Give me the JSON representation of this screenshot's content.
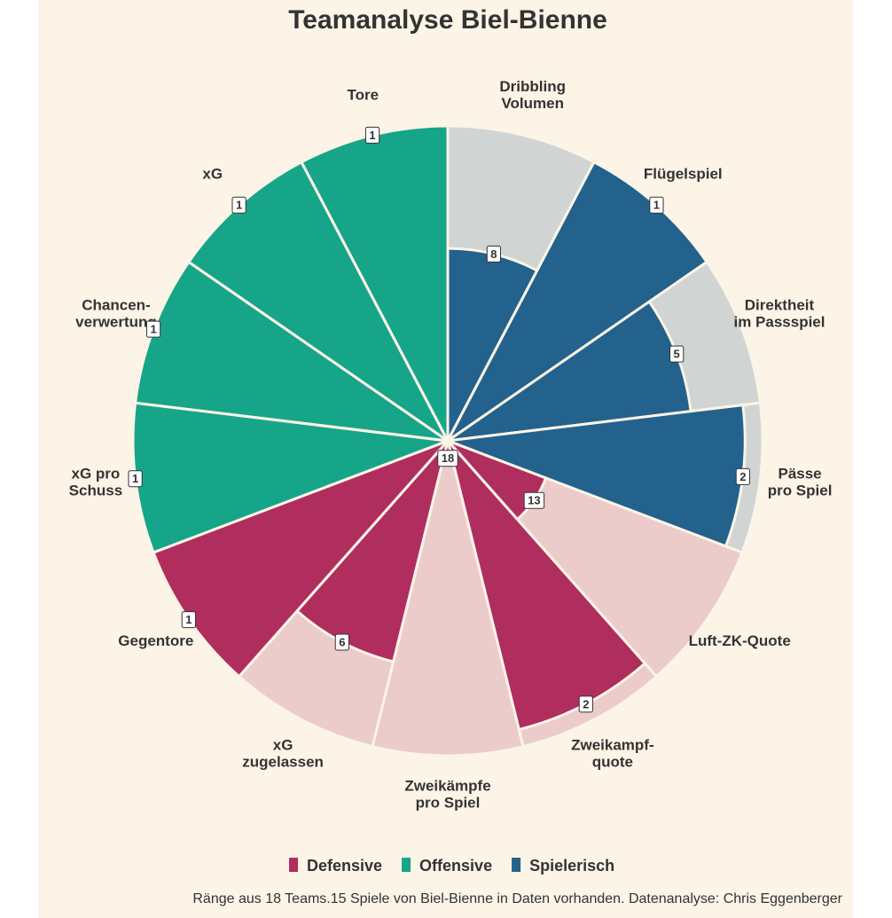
{
  "chart_data": {
    "type": "polar-bar",
    "title": "Teamanalyse Biel-Bienne",
    "categories": [
      "Dribbling\nVolumen",
      "Flügelspiel",
      "Direktheit\nim Passspiel",
      "Pässe\npro Spiel",
      "Luft-ZK-Quote",
      "Zweikampf-\nquote",
      "Zweikämpfe\npro Spiel",
      "xG\nzugelassen",
      "Gegentore",
      "xG pro\nSchuss",
      "Chancen-\nverwertung",
      "xG",
      "Tore"
    ],
    "values": [
      8,
      1,
      5,
      2,
      13,
      2,
      18,
      6,
      1,
      1,
      1,
      1,
      1
    ],
    "groups": [
      "Spielerisch",
      "Spielerisch",
      "Spielerisch",
      "Spielerisch",
      "Defensive",
      "Defensive",
      "Defensive",
      "Defensive",
      "Defensive",
      "Offensive",
      "Offensive",
      "Offensive",
      "Offensive"
    ],
    "legend": [
      {
        "name": "Defensive",
        "color": "#b02e5e",
        "background": "#eccccb"
      },
      {
        "name": "Offensive",
        "color": "#17a589",
        "background": "#c9e8d5"
      },
      {
        "name": "Spielerisch",
        "color": "#23628c",
        "background": "#d0d5d4"
      }
    ],
    "rlim": [
      19,
      1
    ],
    "caption": "Ränge aus 18 Teams.15 Spiele von Biel-Bienne in Daten vorhanden. Datenanalyse: Chris Eggenberger"
  }
}
